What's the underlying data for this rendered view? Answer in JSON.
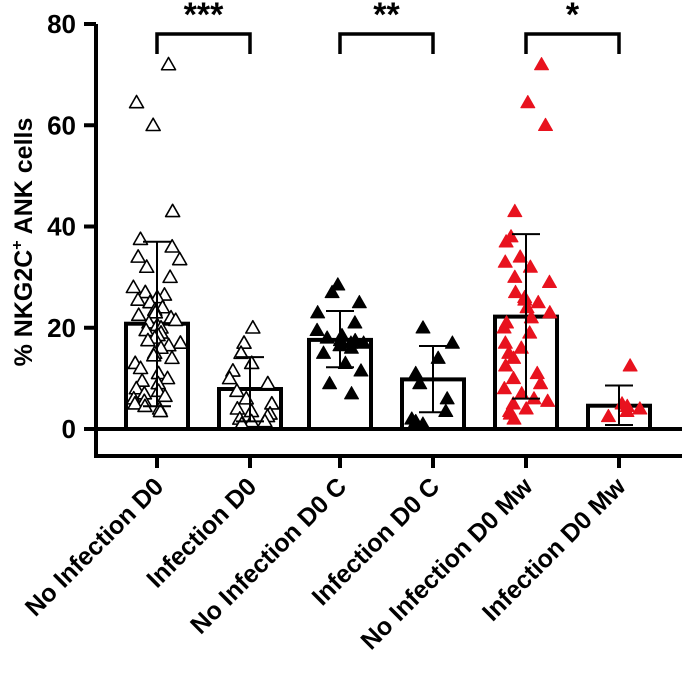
{
  "chart_data": {
    "type": "bar",
    "title": "",
    "xlabel": "",
    "ylabel_prefix": "% NKG2C",
    "ylabel_superscript": "+",
    "ylabel_suffix": " ANK cells",
    "ylim": [
      0,
      80
    ],
    "yticks": [
      0,
      20,
      40,
      60,
      80
    ],
    "ytick_labels": [
      "0",
      "20",
      "40",
      "60",
      "80"
    ],
    "categories": [
      "No Infection D0",
      "Infection D0",
      "No Infection D0 C",
      "Infection D0 C",
      "No Infection D0 Mw",
      "Infection D0 Mw"
    ],
    "values": [
      20.8,
      7.9,
      17.6,
      9.8,
      22.2,
      4.6
    ],
    "errors": [
      {
        "low": 4.5,
        "high": 37.0
      },
      {
        "low": 1.5,
        "high": 14.2
      },
      {
        "low": 12.2,
        "high": 23.3
      },
      {
        "low": 3.3,
        "high": 16.4
      },
      {
        "low": 6.0,
        "high": 38.5
      },
      {
        "low": 0.8,
        "high": 8.6
      }
    ],
    "marker_styles": [
      "open-triangle",
      "open-triangle",
      "filled-triangle",
      "filled-triangle",
      "red-triangle",
      "red-triangle"
    ],
    "marker_colors": {
      "open": "#000000",
      "black": "#000000",
      "red": "#e8121e"
    },
    "points": [
      [
        72,
        64.5,
        60,
        43,
        37.5,
        36,
        34,
        33.5,
        32,
        30,
        28,
        27,
        26.5,
        26,
        25.5,
        25,
        24,
        23.5,
        23,
        22.5,
        22,
        21.5,
        21,
        20.5,
        20,
        19.5,
        19,
        18.5,
        18,
        17.5,
        17,
        16.5,
        16,
        15,
        14.5,
        14,
        13,
        12,
        11,
        10,
        9.5,
        9,
        8,
        7.5,
        7,
        6.5,
        6,
        5.5,
        5,
        4.5,
        4,
        3.5
      ],
      [
        20,
        17,
        15,
        13,
        11.5,
        10,
        9,
        7.5,
        6,
        5,
        4,
        3.5,
        3,
        2.5,
        2,
        1.5,
        1.5,
        1
      ],
      [
        28.5,
        27,
        25,
        23,
        21,
        19.5,
        18.5,
        18,
        17.5,
        17.5,
        17,
        17,
        16.5,
        16,
        15,
        13,
        11.5,
        9,
        7
      ],
      [
        20,
        17,
        14,
        11,
        9,
        6,
        3.5,
        2,
        1.5,
        1
      ],
      [
        72,
        64.5,
        60,
        43,
        38,
        37,
        34,
        33,
        32,
        30,
        29,
        27,
        26,
        25.5,
        25,
        24,
        23,
        22,
        21,
        20,
        19,
        17,
        16,
        15,
        14,
        12.5,
        11,
        10,
        9,
        8,
        7,
        6,
        5.5,
        5,
        4,
        3.5,
        3,
        2
      ],
      [
        12.5,
        5,
        4.5,
        4,
        3.5,
        2.5
      ]
    ],
    "significance": [
      {
        "from": 0,
        "to": 1,
        "label": "***"
      },
      {
        "from": 2,
        "to": 3,
        "label": "**"
      },
      {
        "from": 4,
        "to": 5,
        "label": "*"
      }
    ]
  }
}
